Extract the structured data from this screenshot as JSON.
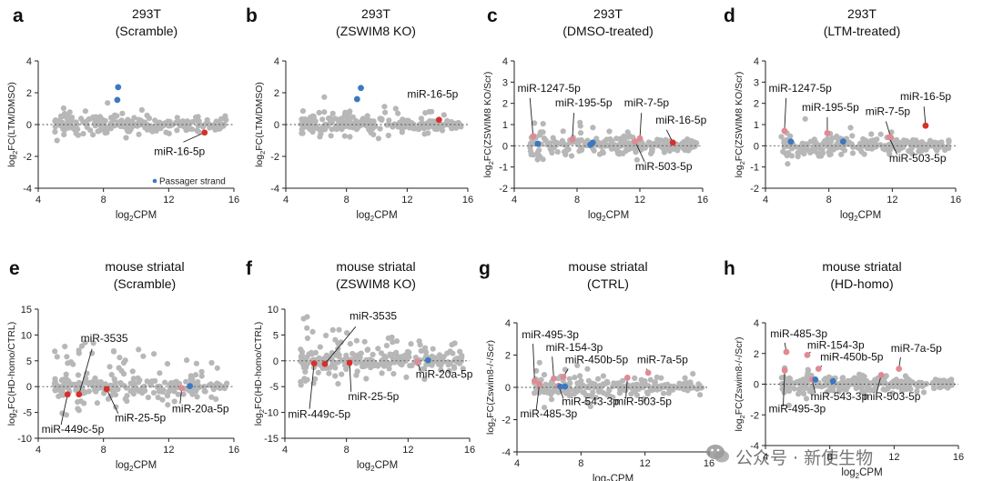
{
  "chart_data": [
    {
      "type": "scatter",
      "letter": "a",
      "title1": "293T",
      "title2": "(Scramble)",
      "ylabel": "log2FC(LTM/DMSO)",
      "xlabel": "log2CPM",
      "xlim": [
        4,
        16
      ],
      "ylim": [
        -4,
        4
      ],
      "xticks": [
        4,
        8,
        12,
        16
      ],
      "yticks": [
        -4,
        -2,
        0,
        2,
        4
      ],
      "legend": "Passager strand",
      "highlights": [
        {
          "label": "miR-16-5p",
          "x": 14.2,
          "y": -0.5,
          "color": "#d7302a",
          "lx": 11.1,
          "ly": -1.9,
          "lineFromX": 12.9,
          "lineFromY": -1.1
        },
        {
          "label": "",
          "x": 8.9,
          "y": 2.35,
          "color": "#3b78c0"
        },
        {
          "label": "",
          "x": 8.85,
          "y": 1.55,
          "color": "#3b78c0"
        }
      ]
    },
    {
      "type": "scatter",
      "letter": "b",
      "title1": "293T",
      "title2": "(ZSWIM8 KO)",
      "ylabel": "log2FC(LTM/DMSO)",
      "xlabel": "log2CPM",
      "xlim": [
        4,
        16
      ],
      "ylim": [
        -4,
        4
      ],
      "xticks": [
        4,
        8,
        12,
        16
      ],
      "yticks": [
        -4,
        -2,
        0,
        2,
        4
      ],
      "highlights": [
        {
          "label": "miR-16-5p",
          "x": 14.1,
          "y": 0.3,
          "color": "#d7302a",
          "lx": 12.0,
          "ly": 1.7
        },
        {
          "label": "",
          "x": 8.95,
          "y": 2.3,
          "color": "#3b78c0"
        },
        {
          "label": "",
          "x": 8.7,
          "y": 1.6,
          "color": "#3b78c0"
        }
      ]
    },
    {
      "type": "scatter",
      "letter": "c",
      "title1": "293T",
      "title2": "(DMSO-treated)",
      "ylabel": "log2FC(ZSWIM8 KO/Scr)",
      "xlabel": "log2CPM",
      "xlim": [
        4,
        16
      ],
      "ylim": [
        -2,
        4
      ],
      "xticks": [
        4,
        8,
        12,
        16
      ],
      "yticks": [
        -2,
        -1,
        0,
        1,
        2,
        3,
        4
      ],
      "highlights": [
        {
          "label": "miR-1247-5p",
          "x": 5.2,
          "y": 0.45,
          "color": "#e08a94",
          "lx": 4.2,
          "ly": 2.55,
          "lineFromX": 5.0,
          "lineFromY": 2.25
        },
        {
          "label": "miR-195-5p",
          "x": 7.7,
          "y": 0.3,
          "color": "#e08a94",
          "lx": 6.6,
          "ly": 1.85,
          "lineFromX": 7.8,
          "lineFromY": 1.55
        },
        {
          "label": "miR-7-5p",
          "x": 12.0,
          "y": 0.35,
          "color": "#e08a94",
          "lx": 11.0,
          "ly": 1.85,
          "lineFromX": 12.1,
          "lineFromY": 1.55
        },
        {
          "label": "miR-16-5p",
          "x": 14.1,
          "y": 0.15,
          "color": "#d7302a",
          "lx": 13.0,
          "ly": 1.05,
          "lineFromX": 13.7,
          "lineFromY": 0.75
        },
        {
          "label": "miR-503-5p",
          "x": 11.7,
          "y": 0.2,
          "color": "#e08a94",
          "lx": 11.7,
          "ly": -1.15,
          "lineFromX": 12.3,
          "lineFromY": -0.75
        },
        {
          "label": "",
          "x": 5.5,
          "y": 0.1,
          "color": "#3b78c0"
        },
        {
          "label": "",
          "x": 8.85,
          "y": 0.05,
          "color": "#3b78c0"
        },
        {
          "label": "",
          "x": 9.0,
          "y": 0.15,
          "color": "#3b78c0"
        }
      ]
    },
    {
      "type": "scatter",
      "letter": "d",
      "title1": "293T",
      "title2": "(LTM-treated)",
      "ylabel": "log2FC(ZSWIM8 KO/Scr)",
      "xlabel": "log2CPM",
      "xlim": [
        4,
        16
      ],
      "ylim": [
        -2,
        4
      ],
      "xticks": [
        4,
        8,
        12,
        16
      ],
      "yticks": [
        -2,
        -1,
        0,
        1,
        2,
        3,
        4
      ],
      "highlights": [
        {
          "label": "miR-1247-5p",
          "x": 5.2,
          "y": 0.7,
          "color": "#e08a94",
          "lx": 4.2,
          "ly": 2.55,
          "lineFromX": 5.3,
          "lineFromY": 2.25
        },
        {
          "label": "miR-195-5p",
          "x": 7.9,
          "y": 0.6,
          "color": "#e08a94",
          "lx": 6.3,
          "ly": 1.65,
          "lineFromX": 7.9,
          "lineFromY": 1.35
        },
        {
          "label": "miR-7-5p",
          "x": 11.9,
          "y": 0.4,
          "color": "#e08a94",
          "lx": 10.3,
          "ly": 1.45,
          "lineFromX": 11.6,
          "lineFromY": 1.15
        },
        {
          "label": "miR-16-5p",
          "x": 14.1,
          "y": 0.95,
          "color": "#d7302a",
          "lx": 12.5,
          "ly": 2.15,
          "lineFromX": 14.0,
          "lineFromY": 1.85
        },
        {
          "label": "miR-503-5p",
          "x": 11.8,
          "y": 0.4,
          "color": "#e08a94",
          "lx": 11.8,
          "ly": -0.75,
          "lineFromX": 12.3,
          "lineFromY": -0.4
        },
        {
          "label": "",
          "x": 5.6,
          "y": 0.2,
          "color": "#3b78c0"
        },
        {
          "label": "",
          "x": 8.9,
          "y": 0.2,
          "color": "#3b78c0"
        }
      ]
    },
    {
      "type": "scatter",
      "letter": "e",
      "title1": "mouse striatal",
      "title2": "(Scramble)",
      "ylabel": "log2FC(HD-homo/CTRL)",
      "xlabel": "log2CPM",
      "xlim": [
        4,
        16
      ],
      "ylim": [
        -10,
        15
      ],
      "xticks": [
        4,
        8,
        12,
        16
      ],
      "yticks": [
        -10,
        -5,
        0,
        5,
        10,
        15
      ],
      "highlights": [
        {
          "label": "miR-3535",
          "x": 6.5,
          "y": -1.5,
          "color": "#d7302a",
          "lx": 6.6,
          "ly": 8.7,
          "lineFromX": 7.3,
          "lineFromY": 7.3
        },
        {
          "label": "miR-449c-5p",
          "x": 5.8,
          "y": -1.5,
          "color": "#d7302a",
          "lx": 4.2,
          "ly": -8.9,
          "lineFromX": 5.4,
          "lineFromY": -7.4
        },
        {
          "label": "miR-25-5p",
          "x": 8.2,
          "y": -0.5,
          "color": "#d7302a",
          "lx": 8.7,
          "ly": -6.7,
          "lineFromX": 8.9,
          "lineFromY": -5.2
        },
        {
          "label": "miR-20a-5p",
          "x": 12.8,
          "y": -0.3,
          "color": "#e08a94",
          "lx": 12.2,
          "ly": -5.0,
          "lineFromX": 12.7,
          "lineFromY": -3.3
        },
        {
          "label": "",
          "x": 13.3,
          "y": 0.1,
          "color": "#3b78c0"
        }
      ]
    },
    {
      "type": "scatter",
      "letter": "f",
      "title1": "mouse striatal",
      "title2": "(ZSWIM8 KO)",
      "ylabel": "log2FC(HD-homo/CTRL)",
      "xlabel": "log2CPM",
      "xlim": [
        4,
        16
      ],
      "ylim": [
        -15,
        10
      ],
      "xticks": [
        4,
        8,
        12,
        16
      ],
      "yticks": [
        -15,
        -10,
        -5,
        0,
        5,
        10
      ],
      "highlights": [
        {
          "label": "miR-3535",
          "x": 6.6,
          "y": -0.6,
          "color": "#d7302a",
          "lx": 8.2,
          "ly": 8.0,
          "lineFromX": 8.6,
          "lineFromY": 6.6
        },
        {
          "label": "miR-449c-5p",
          "x": 5.9,
          "y": -0.5,
          "color": "#d7302a",
          "lx": 4.2,
          "ly": -11.0,
          "lineFromX": 5.6,
          "lineFromY": -9.3
        },
        {
          "label": "miR-25-5p",
          "x": 8.2,
          "y": -0.4,
          "color": "#d7302a",
          "lx": 8.1,
          "ly": -7.6,
          "lineFromX": 8.3,
          "lineFromY": -6.0
        },
        {
          "label": "miR-20a-5p",
          "x": 12.6,
          "y": -0.2,
          "color": "#e08a94",
          "lx": 12.5,
          "ly": -3.3,
          "lineFromX": 12.8,
          "lineFromY": -1.9
        },
        {
          "label": "",
          "x": 13.3,
          "y": 0.1,
          "color": "#3b78c0"
        }
      ]
    },
    {
      "type": "scatter",
      "letter": "g",
      "title1": "mouse striatal",
      "title2": "(CTRL)",
      "ylabel": "log2FC(Zswim8-/-/Scr)",
      "xlabel": "log2CPM",
      "xlim": [
        4,
        16
      ],
      "ylim": [
        -4,
        4
      ],
      "xticks": [
        4,
        8,
        12,
        16
      ],
      "yticks": [
        -4,
        -2,
        0,
        2,
        4
      ],
      "highlights": [
        {
          "label": "miR-495-3p",
          "x": 5.1,
          "y": 0.4,
          "color": "#e08a94",
          "lx": 4.3,
          "ly": 3.05,
          "lineFromX": 5.0,
          "lineFromY": 2.7
        },
        {
          "label": "miR-154-3p",
          "x": 6.3,
          "y": 0.55,
          "color": "#e08a94",
          "lx": 5.8,
          "ly": 2.25,
          "lineFromX": 6.2,
          "lineFromY": 1.9
        },
        {
          "label": "miR-450b-5p",
          "x": 6.9,
          "y": 0.65,
          "color": "#e08a94",
          "lx": 7.0,
          "ly": 1.5,
          "lineFromX": 7.2,
          "lineFromY": 1.15
        },
        {
          "label": "miR-7a-5p",
          "x": 12.2,
          "y": 0.9,
          "color": "#e08a94",
          "lx": 11.5,
          "ly": 1.5,
          "lineFromX": 12.1,
          "lineFromY": 1.15
        },
        {
          "label": "miR-543-3p",
          "x": 6.6,
          "y": 0.1,
          "color": "#e08a94",
          "lx": 6.8,
          "ly": -1.1,
          "lineFromX": 6.9,
          "lineFromY": -0.7
        },
        {
          "label": "miR-503-5p",
          "x": 10.9,
          "y": 0.6,
          "color": "#e08a94",
          "lx": 10.1,
          "ly": -1.1,
          "lineFromX": 10.8,
          "lineFromY": -0.7
        },
        {
          "label": "miR-485-3p",
          "x": 5.4,
          "y": 0.2,
          "color": "#e08a94",
          "lx": 4.2,
          "ly": -1.85,
          "lineFromX": 5.2,
          "lineFromY": -1.45
        },
        {
          "label": "",
          "x": 6.7,
          "y": 0.05,
          "color": "#3b78c0"
        },
        {
          "label": "",
          "x": 7.0,
          "y": 0.05,
          "color": "#3b78c0"
        }
      ]
    },
    {
      "type": "scatter",
      "letter": "h",
      "title1": "mouse striatal",
      "title2": "(HD-homo)",
      "ylabel": "log2FC(Zswim8-/-/Scr)",
      "xlabel": "log2CPM",
      "xlim": [
        4,
        16
      ],
      "ylim": [
        -4,
        4
      ],
      "xticks": [
        4,
        8,
        12,
        16
      ],
      "yticks": [
        -4,
        -2,
        0,
        2,
        4
      ],
      "highlights": [
        {
          "label": "miR-485-3p",
          "x": 5.3,
          "y": 2.1,
          "color": "#e08a94",
          "lx": 4.3,
          "ly": 3.05,
          "lineFromX": 5.2,
          "lineFromY": 2.7
        },
        {
          "label": "miR-154-3p",
          "x": 6.6,
          "y": 1.9,
          "color": "#e08a94",
          "lx": 6.6,
          "ly": 2.3,
          "lineFromX": 6.8,
          "lineFromY": 2.1
        },
        {
          "label": "miR-450b-5p",
          "x": 7.3,
          "y": 1.0,
          "color": "#e08a94",
          "lx": 7.4,
          "ly": 1.55,
          "lineFromX": 7.5,
          "lineFromY": 1.2
        },
        {
          "label": "miR-7a-5p",
          "x": 12.3,
          "y": 1.0,
          "color": "#e08a94",
          "lx": 11.8,
          "ly": 2.1,
          "lineFromX": 12.4,
          "lineFromY": 1.75
        },
        {
          "label": "miR-543-3p",
          "x": 6.9,
          "y": 0.3,
          "color": "#e08a94",
          "lx": 6.8,
          "ly": -1.05,
          "lineFromX": 7.1,
          "lineFromY": -0.6
        },
        {
          "label": "miR-503-5p",
          "x": 11.2,
          "y": 0.6,
          "color": "#e08a94",
          "lx": 10.1,
          "ly": -1.05,
          "lineFromX": 10.9,
          "lineFromY": -0.6
        },
        {
          "label": "miR-495-3p",
          "x": 5.2,
          "y": 0.9,
          "color": "#e08a94",
          "lx": 4.2,
          "ly": -1.85,
          "lineFromX": 5.1,
          "lineFromY": -1.45
        },
        {
          "label": "",
          "x": 7.1,
          "y": 0.3,
          "color": "#3b78c0"
        },
        {
          "label": "",
          "x": 8.2,
          "y": 0.2,
          "color": "#3b78c0"
        }
      ]
    }
  ],
  "colors": {
    "background_points": "#b7b7b7",
    "red": "#d7302a",
    "pink": "#e08a94",
    "blue": "#3b78c0"
  },
  "watermark": "公众号 · 新使生物"
}
